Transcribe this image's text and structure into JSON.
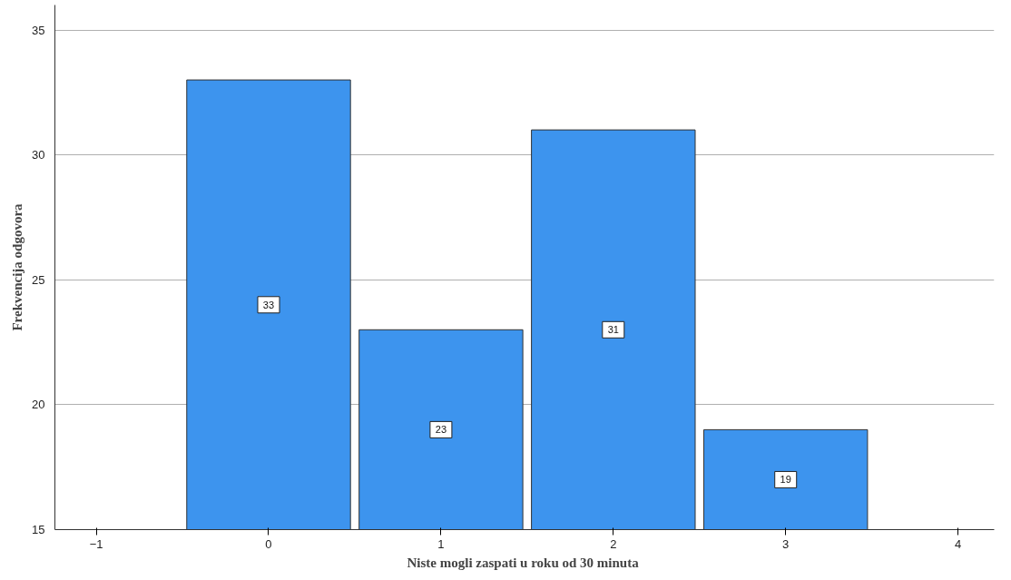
{
  "chart_data": {
    "type": "bar",
    "xlabel": "Niste mogli zaspati u roku  od 30 minuta",
    "ylabel": "Frekvencija odgovora",
    "x": [
      0,
      1,
      2,
      3
    ],
    "values": [
      33,
      23,
      31,
      19
    ],
    "color": "#3d94ee",
    "xlim": [
      -1.24,
      4.21
    ],
    "xticks": [
      {
        "value": -1,
        "label": "−1"
      },
      0,
      1,
      2,
      3,
      4
    ],
    "ylim": [
      15,
      36
    ],
    "yticks": [
      15,
      20,
      25,
      30,
      35
    ],
    "grid": "y",
    "data_labels": true
  }
}
